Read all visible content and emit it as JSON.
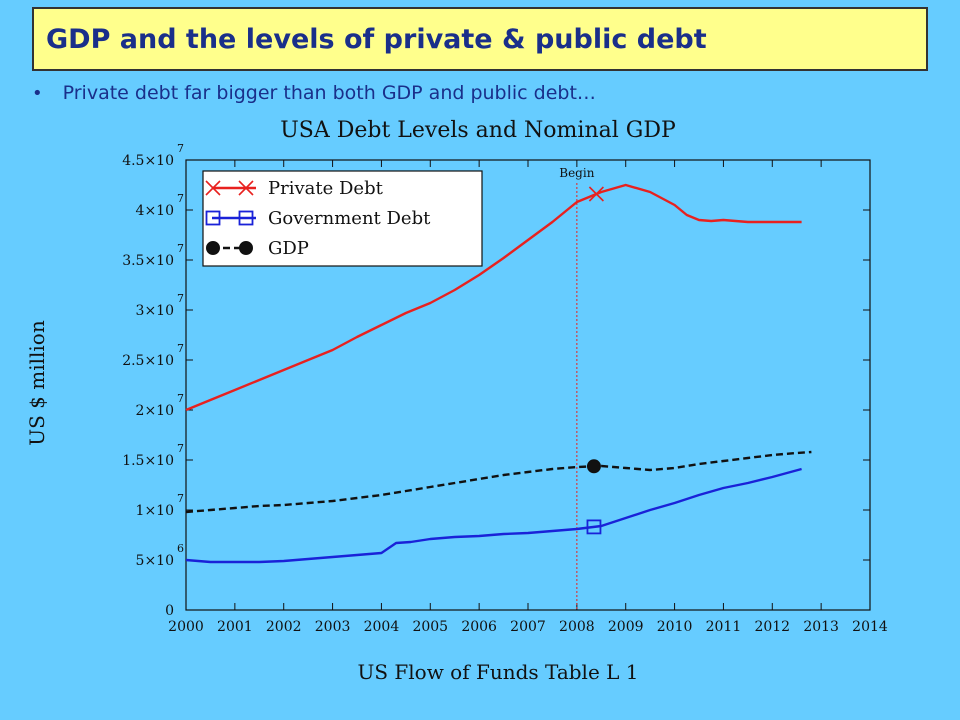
{
  "slide": {
    "title": "GDP and the levels of private & public debt",
    "bullet": "Private debt far bigger than both GDP and public debt…"
  },
  "chart_data": {
    "type": "line",
    "title": "USA Debt Levels and Nominal GDP",
    "xlabel": "US Flow of Funds Table L 1",
    "ylabel": "US $ million",
    "xlim": [
      2000,
      2014
    ],
    "ylim": [
      0,
      45000000
    ],
    "x_ticks": [
      "2000",
      "2001",
      "2002",
      "2003",
      "2004",
      "2005",
      "2006",
      "2007",
      "2008",
      "2009",
      "2010",
      "2011",
      "2012",
      "2013",
      "2014"
    ],
    "y_ticks": [
      {
        "value": 0,
        "mant": "0",
        "exp": ""
      },
      {
        "value": 5000000,
        "mant": "5×10",
        "exp": "6"
      },
      {
        "value": 10000000,
        "mant": "1×10",
        "exp": "7"
      },
      {
        "value": 15000000,
        "mant": "1.5×10",
        "exp": "7"
      },
      {
        "value": 20000000,
        "mant": "2×10",
        "exp": "7"
      },
      {
        "value": 25000000,
        "mant": "2.5×10",
        "exp": "7"
      },
      {
        "value": 30000000,
        "mant": "3×10",
        "exp": "7"
      },
      {
        "value": 35000000,
        "mant": "3.5×10",
        "exp": "7"
      },
      {
        "value": 40000000,
        "mant": "4×10",
        "exp": "7"
      },
      {
        "value": 45000000,
        "mant": "4.5×10",
        "exp": "7"
      }
    ],
    "vline": {
      "x": 2008.0,
      "label": "Begin"
    },
    "legend": {
      "position": "top-left"
    },
    "series": [
      {
        "name": "Private Debt",
        "color": "#e8211f",
        "marker": "x",
        "marker_x": 2008.4,
        "dashed": false,
        "x": [
          2000,
          2000.5,
          2001,
          2001.5,
          2002,
          2002.5,
          2003,
          2003.5,
          2004,
          2004.5,
          2005,
          2005.5,
          2006,
          2006.5,
          2007,
          2007.5,
          2008,
          2008.5,
          2009,
          2009.5,
          2010,
          2010.25,
          2010.5,
          2010.75,
          2011,
          2011.25,
          2011.5,
          2012,
          2012.6
        ],
        "y": [
          20000000,
          21000000,
          22000000,
          23000000,
          24000000,
          25000000,
          26000000,
          27300000,
          28500000,
          29700000,
          30700000,
          32000000,
          33500000,
          35200000,
          37000000,
          38800000,
          40800000,
          41800000,
          42500000,
          41800000,
          40500000,
          39500000,
          39000000,
          38900000,
          39000000,
          38900000,
          38800000,
          38800000,
          38800000
        ]
      },
      {
        "name": "Government Debt",
        "color": "#1a22d8",
        "marker": "square",
        "marker_x": 2008.35,
        "dashed": false,
        "x": [
          2000,
          2000.5,
          2001,
          2001.5,
          2002,
          2002.5,
          2003,
          2003.5,
          2004,
          2004.3,
          2004.6,
          2005,
          2005.5,
          2006,
          2006.5,
          2007,
          2007.5,
          2008,
          2008.5,
          2009,
          2009.5,
          2010,
          2010.5,
          2011,
          2011.5,
          2012,
          2012.6
        ],
        "y": [
          5000000,
          4800000,
          4800000,
          4800000,
          4900000,
          5100000,
          5300000,
          5500000,
          5700000,
          6700000,
          6800000,
          7100000,
          7300000,
          7400000,
          7600000,
          7700000,
          7900000,
          8100000,
          8400000,
          9200000,
          10000000,
          10700000,
          11500000,
          12200000,
          12700000,
          13300000,
          14100000
        ]
      },
      {
        "name": "GDP",
        "color": "#111111",
        "marker": "circle",
        "marker_x": 2008.35,
        "dashed": true,
        "x": [
          2000,
          2000.5,
          2001,
          2001.5,
          2002,
          2002.5,
          2003,
          2003.5,
          2004,
          2004.5,
          2005,
          2005.5,
          2006,
          2006.5,
          2007,
          2007.5,
          2008,
          2008.5,
          2009,
          2009.5,
          2010,
          2010.5,
          2011,
          2011.5,
          2012,
          2012.5,
          2012.8
        ],
        "y": [
          9800000,
          10000000,
          10200000,
          10400000,
          10500000,
          10700000,
          10900000,
          11200000,
          11500000,
          11900000,
          12300000,
          12700000,
          13100000,
          13500000,
          13800000,
          14100000,
          14300000,
          14400000,
          14200000,
          14000000,
          14200000,
          14600000,
          14900000,
          15200000,
          15500000,
          15700000,
          15800000
        ]
      }
    ]
  }
}
